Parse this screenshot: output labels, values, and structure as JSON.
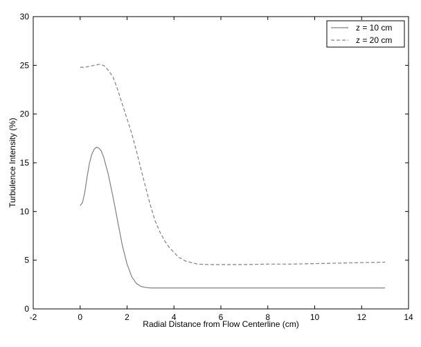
{
  "chart_data": {
    "type": "line",
    "title": "",
    "xlabel": "Radial Distance from Flow Centerline (cm)",
    "ylabel": "Turbulence Intensity (%)",
    "xlim": [
      -2,
      14
    ],
    "ylim": [
      0,
      30
    ],
    "xticks": [
      "-2",
      "0",
      "2",
      "4",
      "6",
      "8",
      "10",
      "12",
      "14"
    ],
    "yticks": [
      "0",
      "5",
      "10",
      "15",
      "20",
      "25",
      "30"
    ],
    "grid": false,
    "legend_position": "top-right",
    "series": [
      {
        "name": "z = 10 cm",
        "line_style": "solid",
        "color": "#7f7f7f",
        "x": [
          0,
          0.1,
          0.2,
          0.3,
          0.4,
          0.5,
          0.6,
          0.7,
          0.8,
          0.9,
          1.0,
          1.2,
          1.4,
          1.6,
          1.8,
          2.0,
          2.2,
          2.4,
          2.6,
          2.8,
          3.0,
          3.2,
          3.5,
          4,
          5,
          6,
          7,
          8,
          9,
          10,
          11,
          12,
          13
        ],
        "y": [
          10.6,
          10.9,
          12.0,
          13.6,
          15.0,
          15.9,
          16.4,
          16.6,
          16.5,
          16.2,
          15.6,
          13.8,
          11.5,
          9.0,
          6.5,
          4.6,
          3.3,
          2.6,
          2.3,
          2.2,
          2.15,
          2.15,
          2.15,
          2.15,
          2.15,
          2.15,
          2.15,
          2.15,
          2.15,
          2.15,
          2.15,
          2.15,
          2.15
        ]
      },
      {
        "name": "z = 20 cm",
        "line_style": "dashed",
        "color": "#7f7f7f",
        "x": [
          0,
          0.2,
          0.4,
          0.6,
          0.8,
          1.0,
          1.2,
          1.4,
          1.6,
          1.8,
          2.0,
          2.2,
          2.4,
          2.6,
          2.8,
          3.0,
          3.2,
          3.4,
          3.6,
          3.8,
          4.0,
          4.2,
          4.5,
          5.0,
          5.5,
          6,
          7,
          8,
          9,
          10,
          11,
          12,
          13
        ],
        "y": [
          24.8,
          24.8,
          24.9,
          25.0,
          25.1,
          25.0,
          24.5,
          23.8,
          22.5,
          21.0,
          19.5,
          18.0,
          16.2,
          14.3,
          12.4,
          10.6,
          9.0,
          7.9,
          7.0,
          6.3,
          5.8,
          5.3,
          4.9,
          4.6,
          4.55,
          4.55,
          4.55,
          4.6,
          4.6,
          4.65,
          4.7,
          4.75,
          4.8
        ]
      }
    ]
  }
}
